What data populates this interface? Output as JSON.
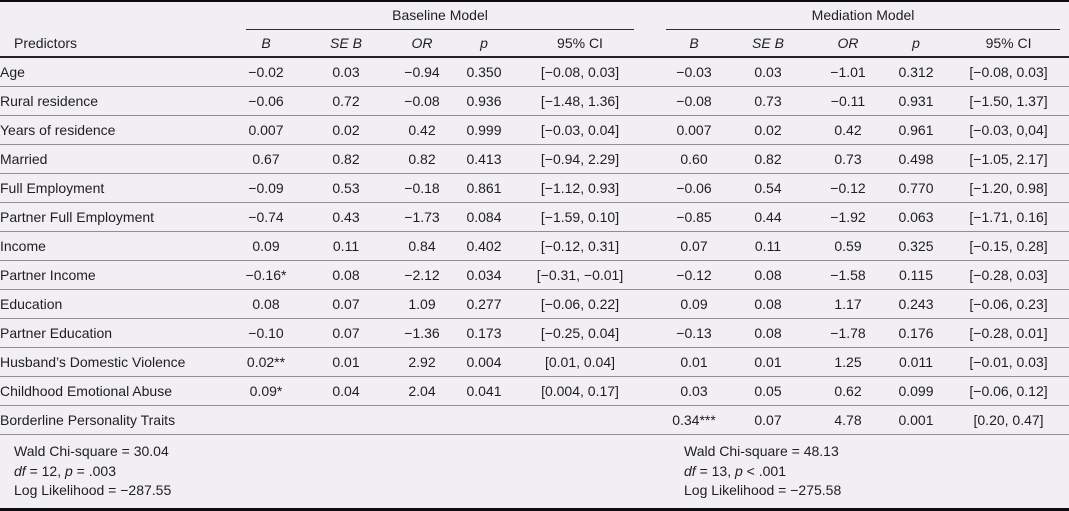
{
  "table": {
    "groups": [
      "Baseline Model",
      "Mediation Model"
    ],
    "header": {
      "predictors": "Predictors",
      "sub": [
        "B",
        "SE B",
        "OR",
        "p",
        "95% CI"
      ]
    },
    "rows": [
      {
        "predictor": "Age",
        "baseline": [
          "−0.02",
          "0.03",
          "−0.94",
          "0.350",
          "[−0.08, 0.03]"
        ],
        "mediation": [
          "−0.03",
          "0.03",
          "−1.01",
          "0.312",
          "[−0.08, 0.03]"
        ]
      },
      {
        "predictor": "Rural residence",
        "baseline": [
          "−0.06",
          "0.72",
          "−0.08",
          "0.936",
          "[−1.48, 1.36]"
        ],
        "mediation": [
          "−0.08",
          "0.73",
          "−0.11",
          "0.931",
          "[−1.50, 1.37]"
        ]
      },
      {
        "predictor": "Years of residence",
        "baseline": [
          "0.007",
          "0.02",
          "0.42",
          "0.999",
          "[−0.03, 0.04]"
        ],
        "mediation": [
          "0.007",
          "0.02",
          "0.42",
          "0.961",
          "[−0.03, 0,04]"
        ]
      },
      {
        "predictor": "Married",
        "baseline": [
          "0.67",
          "0.82",
          "0.82",
          "0.413",
          "[−0.94, 2.29]"
        ],
        "mediation": [
          "0.60",
          "0.82",
          "0.73",
          "0.498",
          "[−1.05, 2.17]"
        ]
      },
      {
        "predictor": "Full Employment",
        "baseline": [
          "−0.09",
          "0.53",
          "−0.18",
          "0.861",
          "[−1.12, 0.93]"
        ],
        "mediation": [
          "−0.06",
          "0.54",
          "−0.12",
          "0.770",
          "[−1.20, 0.98]"
        ]
      },
      {
        "predictor": "Partner Full Employment",
        "baseline": [
          "−0.74",
          "0.43",
          "−1.73",
          "0.084",
          "[−1.59, 0.10]"
        ],
        "mediation": [
          "−0.85",
          "0.44",
          "−1.92",
          "0.063",
          "[−1.71, 0.16]"
        ]
      },
      {
        "predictor": "Income",
        "baseline": [
          "0.09",
          "0.11",
          "0.84",
          "0.402",
          "[−0.12, 0.31]"
        ],
        "mediation": [
          "0.07",
          "0.11",
          "0.59",
          "0.325",
          "[−0.15, 0.28]"
        ]
      },
      {
        "predictor": "Partner Income",
        "baseline": [
          "−0.16*",
          "0.08",
          "−2.12",
          "0.034",
          "[−0.31, −0.01]"
        ],
        "mediation": [
          "−0.12",
          "0.08",
          "−1.58",
          "0.115",
          "[−0.28, 0.03]"
        ]
      },
      {
        "predictor": "Education",
        "baseline": [
          "0.08",
          "0.07",
          "1.09",
          "0.277",
          "[−0.06, 0.22]"
        ],
        "mediation": [
          "0.09",
          "0.08",
          "1.17",
          "0.243",
          "[−0.06, 0.23]"
        ]
      },
      {
        "predictor": "Partner Education",
        "baseline": [
          "−0.10",
          "0.07",
          "−1.36",
          "0.173",
          "[−0.25, 0.04]"
        ],
        "mediation": [
          "−0.13",
          "0.08",
          "−1.78",
          "0.176",
          "[−0.28, 0.01]"
        ]
      },
      {
        "predictor": "Husband’s Domestic Violence",
        "baseline": [
          "0.02**",
          "0.01",
          "2.92",
          "0.004",
          "[0.01, 0.04]"
        ],
        "mediation": [
          "0.01",
          "0.01",
          "1.25",
          "0.011",
          "[−0.01, 0.03]"
        ]
      },
      {
        "predictor": "Childhood Emotional Abuse",
        "baseline": [
          "0.09*",
          "0.04",
          "2.04",
          "0.041",
          "[0.004, 0.17]"
        ],
        "mediation": [
          "0.03",
          "0.05",
          "0.62",
          "0.099",
          "[−0.06, 0.12]"
        ]
      },
      {
        "predictor": "Borderline Personality Traits",
        "baseline": [
          "",
          "",
          "",
          "",
          ""
        ],
        "mediation": [
          "0.34***",
          "0.07",
          "4.78",
          "0.001",
          "[0.20, 0.47]"
        ]
      }
    ],
    "footer": {
      "baseline": {
        "wald": "Wald Chi-square = 30.04",
        "df_label": "df",
        "df_eq": " = 12, ",
        "p_label": "p",
        "p_eq": " = .003",
        "loglik": "Log Likelihood = −287.55"
      },
      "mediation": {
        "wald": "Wald Chi-square = 48.13",
        "df_label": "df",
        "df_eq": " = 13, ",
        "p_label": "p",
        "p_eq": " < .001",
        "loglik": "Log Likelihood = −275.58"
      }
    },
    "colors": {
      "background": "#f1eff4",
      "rule_thin": "#8f8d96",
      "rule_heavy": "#222228",
      "border": "#0c0c10",
      "text": "#1e1e22"
    }
  }
}
